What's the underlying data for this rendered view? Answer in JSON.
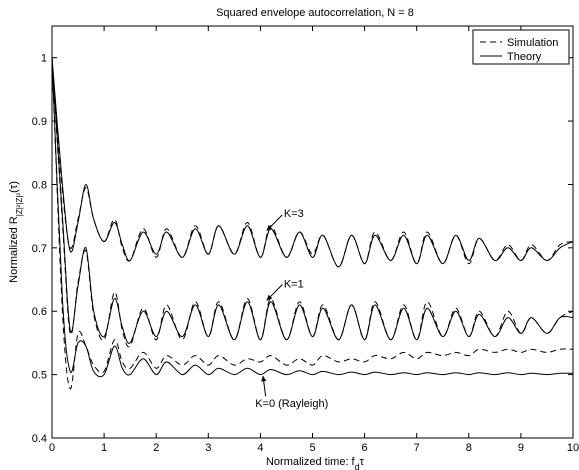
{
  "chart_data": {
    "type": "line",
    "title": "Squared envelope autocorrelation, N = 8",
    "xlabel": {
      "main": "Normalized time: f",
      "sub": "d",
      "tail": "τ"
    },
    "ylabel": {
      "main": "Normalized R",
      "sub": "|Z|²|Z|²",
      "tail": "(τ)"
    },
    "xlim": [
      0,
      10
    ],
    "ylim": [
      0.4,
      1.05
    ],
    "xticks": [
      "0",
      "1",
      "2",
      "3",
      "4",
      "5",
      "6",
      "7",
      "8",
      "9",
      "10"
    ],
    "yticks": [
      "0.4",
      "0.5",
      "0.6",
      "0.7",
      "0.8",
      "0.9",
      "1"
    ],
    "grid": false,
    "legend": {
      "placement": "top-right",
      "entries": [
        {
          "label": "Simulation",
          "style": "dashed"
        },
        {
          "label": "Theory",
          "style": "solid"
        }
      ]
    },
    "annotations": [
      {
        "text": "K=3",
        "x": 4.45,
        "y": 0.755
      },
      {
        "text": "K=1",
        "x": 4.45,
        "y": 0.644
      },
      {
        "text": "K=0 (Rayleigh)",
        "x": 3.9,
        "y": 0.455
      }
    ],
    "series": [
      {
        "style": "solid",
        "x": [
          0,
          0.2,
          0.35,
          0.5,
          0.65,
          0.8,
          1.0,
          1.2,
          1.35,
          1.5,
          1.75,
          2.0,
          2.2,
          2.5,
          2.75,
          3.0,
          3.2,
          3.5,
          3.75,
          4.0,
          4.2,
          4.5,
          4.75,
          5.0,
          5.2,
          5.5,
          5.75,
          6.0,
          6.2,
          6.5,
          6.75,
          7.0,
          7.2,
          7.5,
          7.75,
          8.0,
          8.2,
          8.5,
          8.75,
          9.0,
          9.2,
          9.5,
          9.75,
          10.0
        ],
        "y": [
          1.0,
          0.8,
          0.695,
          0.74,
          0.8,
          0.745,
          0.71,
          0.74,
          0.705,
          0.68,
          0.725,
          0.69,
          0.725,
          0.685,
          0.73,
          0.69,
          0.735,
          0.69,
          0.735,
          0.685,
          0.73,
          0.685,
          0.725,
          0.685,
          0.72,
          0.67,
          0.72,
          0.675,
          0.72,
          0.68,
          0.72,
          0.675,
          0.72,
          0.675,
          0.72,
          0.68,
          0.715,
          0.68,
          0.7,
          0.68,
          0.7,
          0.68,
          0.7,
          0.71
        ]
      },
      {
        "style": "dashed",
        "x": [
          0,
          0.2,
          0.35,
          0.5,
          0.65,
          0.8,
          1.0,
          1.2,
          1.35,
          1.5,
          1.75,
          2.0,
          2.2,
          2.5,
          2.75,
          3.0,
          3.2,
          3.5,
          3.75,
          4.0,
          4.2,
          4.5,
          4.75,
          5.0,
          5.2,
          5.5,
          5.75,
          6.0,
          6.2,
          6.5,
          6.75,
          7.0,
          7.2,
          7.5,
          7.75,
          8.0,
          8.2,
          8.5,
          8.75,
          9.0,
          9.2,
          9.5,
          9.75,
          10.0
        ],
        "y": [
          1.0,
          0.79,
          0.7,
          0.745,
          0.795,
          0.745,
          0.71,
          0.745,
          0.7,
          0.68,
          0.73,
          0.685,
          0.73,
          0.685,
          0.735,
          0.69,
          0.735,
          0.69,
          0.74,
          0.685,
          0.735,
          0.685,
          0.725,
          0.69,
          0.72,
          0.67,
          0.72,
          0.675,
          0.725,
          0.68,
          0.725,
          0.675,
          0.725,
          0.675,
          0.72,
          0.675,
          0.715,
          0.68,
          0.705,
          0.68,
          0.705,
          0.68,
          0.705,
          0.71
        ]
      },
      {
        "style": "solid",
        "x": [
          0,
          0.2,
          0.35,
          0.5,
          0.65,
          0.8,
          1.0,
          1.2,
          1.35,
          1.5,
          1.75,
          2.0,
          2.2,
          2.5,
          2.75,
          3.0,
          3.2,
          3.5,
          3.75,
          4.0,
          4.2,
          4.5,
          4.75,
          5.0,
          5.2,
          5.5,
          5.75,
          6.0,
          6.2,
          6.5,
          6.75,
          7.0,
          7.2,
          7.5,
          7.75,
          8.0,
          8.2,
          8.5,
          8.75,
          9.0,
          9.2,
          9.5,
          9.75,
          10.0
        ],
        "y": [
          1.0,
          0.75,
          0.57,
          0.64,
          0.7,
          0.6,
          0.56,
          0.62,
          0.575,
          0.55,
          0.6,
          0.56,
          0.6,
          0.56,
          0.61,
          0.56,
          0.61,
          0.555,
          0.615,
          0.555,
          0.615,
          0.555,
          0.61,
          0.56,
          0.605,
          0.555,
          0.61,
          0.555,
          0.61,
          0.555,
          0.605,
          0.555,
          0.605,
          0.56,
          0.6,
          0.56,
          0.595,
          0.56,
          0.59,
          0.565,
          0.59,
          0.565,
          0.59,
          0.59
        ]
      },
      {
        "style": "dashed",
        "x": [
          0,
          0.2,
          0.35,
          0.5,
          0.65,
          0.8,
          1.0,
          1.2,
          1.35,
          1.5,
          1.75,
          2.0,
          2.2,
          2.5,
          2.75,
          3.0,
          3.2,
          3.5,
          3.75,
          4.0,
          4.2,
          4.5,
          4.75,
          5.0,
          5.2,
          5.5,
          5.75,
          6.0,
          6.2,
          6.5,
          6.75,
          7.0,
          7.2,
          7.5,
          7.75,
          8.0,
          8.2,
          8.5,
          8.75,
          9.0,
          9.2,
          9.5,
          9.75,
          10.0
        ],
        "y": [
          1.0,
          0.74,
          0.565,
          0.645,
          0.695,
          0.595,
          0.555,
          0.63,
          0.57,
          0.545,
          0.605,
          0.555,
          0.61,
          0.555,
          0.615,
          0.56,
          0.615,
          0.555,
          0.62,
          0.555,
          0.62,
          0.555,
          0.615,
          0.56,
          0.61,
          0.555,
          0.61,
          0.555,
          0.615,
          0.555,
          0.61,
          0.555,
          0.615,
          0.56,
          0.605,
          0.56,
          0.6,
          0.56,
          0.6,
          0.565,
          0.59,
          0.565,
          0.59,
          0.6
        ]
      },
      {
        "style": "solid",
        "x": [
          0,
          0.2,
          0.35,
          0.5,
          0.65,
          0.8,
          1.0,
          1.2,
          1.35,
          1.5,
          1.75,
          2.0,
          2.2,
          2.5,
          2.75,
          3.0,
          3.2,
          3.5,
          3.75,
          4.0,
          4.2,
          4.5,
          4.75,
          5.0,
          5.2,
          5.5,
          5.75,
          6.0,
          6.2,
          6.5,
          6.75,
          7.0,
          7.2,
          7.5,
          7.75,
          8.0,
          8.2,
          8.5,
          8.75,
          9.0,
          9.2,
          9.5,
          9.75,
          10.0
        ],
        "y": [
          1.0,
          0.62,
          0.505,
          0.55,
          0.545,
          0.505,
          0.5,
          0.545,
          0.51,
          0.5,
          0.525,
          0.5,
          0.52,
          0.5,
          0.515,
          0.5,
          0.51,
          0.5,
          0.51,
          0.5,
          0.508,
          0.5,
          0.506,
          0.5,
          0.505,
          0.5,
          0.504,
          0.5,
          0.504,
          0.5,
          0.503,
          0.5,
          0.503,
          0.5,
          0.503,
          0.5,
          0.503,
          0.5,
          0.503,
          0.5,
          0.502,
          0.5,
          0.502,
          0.502
        ]
      },
      {
        "style": "dashed",
        "x": [
          0,
          0.2,
          0.35,
          0.5,
          0.65,
          0.8,
          1.0,
          1.2,
          1.35,
          1.5,
          1.75,
          2.0,
          2.2,
          2.5,
          2.75,
          3.0,
          3.2,
          3.5,
          3.75,
          4.0,
          4.2,
          4.5,
          4.75,
          5.0,
          5.2,
          5.5,
          5.75,
          6.0,
          6.2,
          6.5,
          6.75,
          7.0,
          7.2,
          7.5,
          7.75,
          8.0,
          8.2,
          8.5,
          8.75,
          9.0,
          9.2,
          9.5,
          9.75,
          10.0
        ],
        "y": [
          1.0,
          0.6,
          0.478,
          0.565,
          0.545,
          0.515,
          0.505,
          0.555,
          0.52,
          0.51,
          0.535,
          0.51,
          0.53,
          0.515,
          0.53,
          0.515,
          0.53,
          0.515,
          0.525,
          0.52,
          0.53,
          0.515,
          0.525,
          0.515,
          0.53,
          0.52,
          0.525,
          0.52,
          0.53,
          0.525,
          0.535,
          0.525,
          0.535,
          0.53,
          0.535,
          0.53,
          0.54,
          0.535,
          0.54,
          0.535,
          0.54,
          0.535,
          0.54,
          0.54
        ]
      }
    ]
  }
}
